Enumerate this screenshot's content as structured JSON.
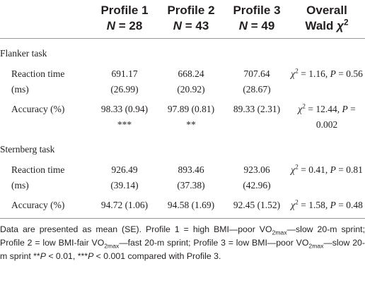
{
  "header": [
    [
      "Profile 1",
      [
        {
          "t": "N",
          "s": "i"
        },
        " = 28"
      ]
    ],
    [
      "Profile 2",
      [
        {
          "t": "N",
          "s": "i"
        },
        " = 43"
      ]
    ],
    [
      "Profile 3",
      [
        {
          "t": "N",
          "s": "i"
        },
        " = 49"
      ]
    ],
    [
      "Overall",
      [
        "Wald ",
        {
          "t": "χ",
          "s": "i"
        },
        {
          "t": "2",
          "s": "sup"
        }
      ]
    ]
  ],
  "sections": [
    {
      "title": "Flanker task",
      "rows": [
        {
          "label": "Reaction time (ms)",
          "values": [
            [
              "691.17",
              "(26.99)"
            ],
            [
              "668.24",
              "(20.92)"
            ],
            [
              "707.64",
              "(28.67)"
            ]
          ],
          "stat": [
            {
              "t": "χ",
              "s": "i"
            },
            {
              "t": "2",
              "s": "sup"
            },
            " = 1.16, ",
            {
              "t": "P",
              "s": "i"
            },
            " = 0.56"
          ]
        },
        {
          "label": "Accuracy (%)",
          "values": [
            [
              "98.33 (0.94)",
              "***"
            ],
            [
              "97.89 (0.81)",
              "**"
            ],
            [
              "89.33 (2.31)"
            ]
          ],
          "stat": [
            {
              "t": "χ",
              "s": "i"
            },
            {
              "t": "2",
              "s": "sup"
            },
            " = 12.44, ",
            {
              "t": "P",
              "s": "i"
            },
            " = 0.002"
          ]
        }
      ]
    },
    {
      "title": "Sternberg task",
      "rows": [
        {
          "label": "Reaction time (ms)",
          "values": [
            [
              "926.49",
              "(39.14)"
            ],
            [
              "893.46",
              "(37.38)"
            ],
            [
              "923.06",
              "(42.96)"
            ]
          ],
          "stat": [
            {
              "t": "χ",
              "s": "i"
            },
            {
              "t": "2",
              "s": "sup"
            },
            " = 0.41, ",
            {
              "t": "P",
              "s": "i"
            },
            " = 0.81"
          ]
        },
        {
          "label": "Accuracy (%)",
          "values": [
            [
              "94.72 (1.06)"
            ],
            [
              "94.58 (1.69)"
            ],
            [
              "92.45 (1.52)"
            ]
          ],
          "stat": [
            {
              "t": "χ",
              "s": "i"
            },
            {
              "t": "2",
              "s": "sup"
            },
            " = 1.58, ",
            {
              "t": "P",
              "s": "i"
            },
            " = 0.48"
          ]
        }
      ]
    }
  ],
  "footnote": [
    "Data are presented as mean (SE). Profile 1 = high BMI—poor VO",
    {
      "t": "2max",
      "s": "sub"
    },
    "—slow 20-m sprint; Profile 2 = low BMI-fair VO",
    {
      "t": "2max",
      "s": "sub"
    },
    "—fast 20-m sprint; Profile 3 = low BMI—poor VO",
    {
      "t": "2max",
      "s": "sub"
    },
    "—slow 20-m sprint **",
    {
      "t": "P",
      "s": "i"
    },
    " < 0.01, ***",
    {
      "t": "P",
      "s": "i"
    },
    " < 0.001 compared with Profile 3."
  ]
}
